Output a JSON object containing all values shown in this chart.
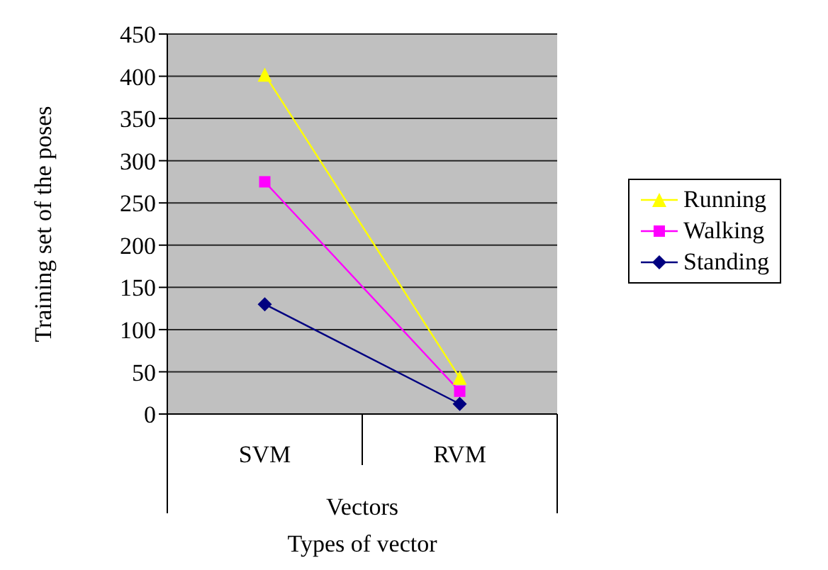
{
  "chart_data": {
    "type": "line",
    "xlabel": "Types of vector",
    "ylabel": "Training set of the poses",
    "annotations": [
      "Vectors"
    ],
    "categories": [
      "SVM",
      "RVM"
    ],
    "series": [
      {
        "name": "Running",
        "color": "#ffff00",
        "marker": "triangle",
        "values": [
          402,
          43
        ]
      },
      {
        "name": "Walking",
        "color": "#ff00ff",
        "marker": "square",
        "values": [
          275,
          27
        ]
      },
      {
        "name": "Standing",
        "color": "#000080",
        "marker": "diamond",
        "values": [
          130,
          12
        ]
      }
    ],
    "ylim": [
      0,
      450
    ],
    "yticks": [
      0,
      50,
      100,
      150,
      200,
      250,
      300,
      350,
      400,
      450
    ],
    "grid": "y",
    "legend": "right",
    "line_style": "solid"
  }
}
